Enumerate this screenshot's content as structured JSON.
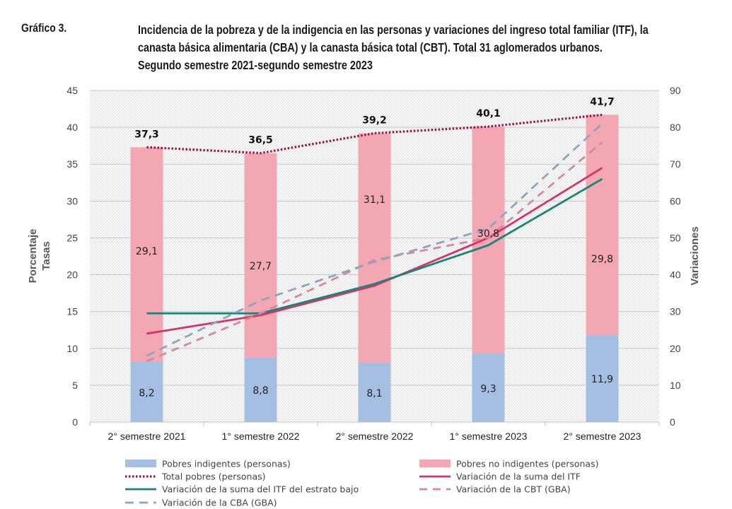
{
  "figure_label": "Gráfico 3.",
  "title_lines": [
    "Incidencia de la pobreza y de la indigencia en las personas y variaciones del ingreso total familiar (ITF), la",
    "canasta básica alimentaria (CBA) y la canasta básica total (CBT). Total 31 aglomerados urbanos.",
    "Segundo semestre 2021-segundo semestre 2023"
  ],
  "colors": {
    "indigentes": "#a5bfe2",
    "no_indigentes": "#f2a7b2",
    "total_pobres": "#a0124a",
    "suma_itf": "#d6336c",
    "itf_estrato_bajo": "#1b8476",
    "cbt": "#d3899c",
    "cba": "#8ea3be"
  },
  "chart_data": {
    "type": "bar",
    "stacked": true,
    "categories": [
      "2° semestre 2021",
      "1° semestre 2022",
      "2° semestre 2022",
      "1° semestre 2023",
      "2° semestre 2023"
    ],
    "y_left": {
      "label_lines": [
        "Porcentaje",
        "Tasas"
      ],
      "range": [
        0,
        45
      ],
      "ticks": [
        "0",
        "5",
        "10",
        "15",
        "20",
        "25",
        "30",
        "35",
        "40",
        "45"
      ]
    },
    "y_right": {
      "label": "Variaciones",
      "range": [
        0,
        90
      ],
      "ticks": [
        "0",
        "10",
        "20",
        "30",
        "40",
        "50",
        "60",
        "70",
        "80",
        "90"
      ]
    },
    "grid": true,
    "legend_position": "bottom",
    "bars": [
      {
        "name": "Pobres indigentes (personas)",
        "values": [
          8.2,
          8.8,
          8.1,
          9.3,
          11.9
        ],
        "labels": [
          "8,2",
          "8,8",
          "8,1",
          "9,3",
          "11,9"
        ]
      },
      {
        "name": "Pobres no indigentes (personas)",
        "values": [
          29.1,
          27.7,
          31.1,
          30.8,
          29.8
        ],
        "labels": [
          "29,1",
          "27,7",
          "31,1",
          "30,8",
          "29,8"
        ]
      }
    ],
    "totals": {
      "values": [
        37.3,
        36.5,
        39.2,
        40.1,
        41.7
      ],
      "labels": [
        "37,3",
        "36,5",
        "39,2",
        "40,1",
        "41,7"
      ]
    },
    "lines": [
      {
        "name": "Total pobres (personas)",
        "axis": "left",
        "style": "dotted",
        "values": [
          37.3,
          36.5,
          39.2,
          40.1,
          41.7
        ]
      },
      {
        "name": "Variación de la suma del ITF",
        "axis": "right",
        "style": "solid",
        "values": [
          24,
          29,
          37,
          50,
          69
        ]
      },
      {
        "name": "Variación de la suma del ITF del estrato bajo",
        "axis": "right",
        "style": "solid",
        "values": [
          29.5,
          29.5,
          37.5,
          48,
          66
        ]
      },
      {
        "name": "Variación de la CBT (GBA)",
        "axis": "right",
        "style": "dashed",
        "values": [
          16.5,
          29.5,
          44,
          50,
          76
        ]
      },
      {
        "name": "Variación de la CBA (GBA)",
        "axis": "right",
        "style": "dashed",
        "values": [
          18,
          33,
          43.5,
          52.5,
          81
        ]
      }
    ]
  }
}
